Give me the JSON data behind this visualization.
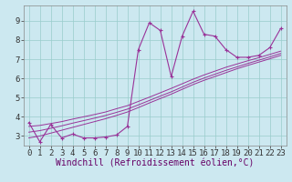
{
  "xlabel": "Windchill (Refroidissement éolien,°C)",
  "bg_color": "#cce8f0",
  "line_color": "#993399",
  "grid_color": "#99cccc",
  "x_data": [
    0,
    1,
    2,
    3,
    4,
    5,
    6,
    7,
    8,
    9,
    10,
    11,
    12,
    13,
    14,
    15,
    16,
    17,
    18,
    19,
    20,
    21,
    22,
    23
  ],
  "y_main": [
    3.7,
    2.7,
    3.6,
    2.9,
    3.1,
    2.9,
    2.9,
    2.95,
    3.05,
    3.5,
    7.5,
    8.9,
    8.5,
    6.1,
    8.2,
    9.5,
    8.3,
    8.2,
    7.5,
    7.1,
    7.1,
    7.2,
    7.6,
    8.6
  ],
  "y_line1": [
    3.5,
    3.55,
    3.65,
    3.75,
    3.88,
    4.0,
    4.12,
    4.25,
    4.42,
    4.58,
    4.8,
    5.02,
    5.25,
    5.48,
    5.72,
    5.96,
    6.18,
    6.38,
    6.58,
    6.75,
    6.92,
    7.08,
    7.25,
    7.42
  ],
  "y_line2": [
    3.2,
    3.28,
    3.4,
    3.53,
    3.67,
    3.8,
    3.93,
    4.07,
    4.23,
    4.4,
    4.62,
    4.85,
    5.08,
    5.3,
    5.55,
    5.8,
    6.02,
    6.22,
    6.42,
    6.6,
    6.78,
    6.95,
    7.12,
    7.3
  ],
  "y_line3": [
    2.9,
    3.0,
    3.15,
    3.3,
    3.45,
    3.6,
    3.75,
    3.9,
    4.07,
    4.25,
    4.48,
    4.72,
    4.95,
    5.18,
    5.43,
    5.68,
    5.9,
    6.1,
    6.3,
    6.5,
    6.68,
    6.85,
    7.02,
    7.2
  ],
  "ylim": [
    2.5,
    9.8
  ],
  "xlim": [
    -0.5,
    23.5
  ],
  "yticks": [
    3,
    4,
    5,
    6,
    7,
    8,
    9
  ],
  "xticks": [
    0,
    1,
    2,
    3,
    4,
    5,
    6,
    7,
    8,
    9,
    10,
    11,
    12,
    13,
    14,
    15,
    16,
    17,
    18,
    19,
    20,
    21,
    22,
    23
  ],
  "xlabel_fontsize": 7,
  "tick_fontsize": 6.5
}
